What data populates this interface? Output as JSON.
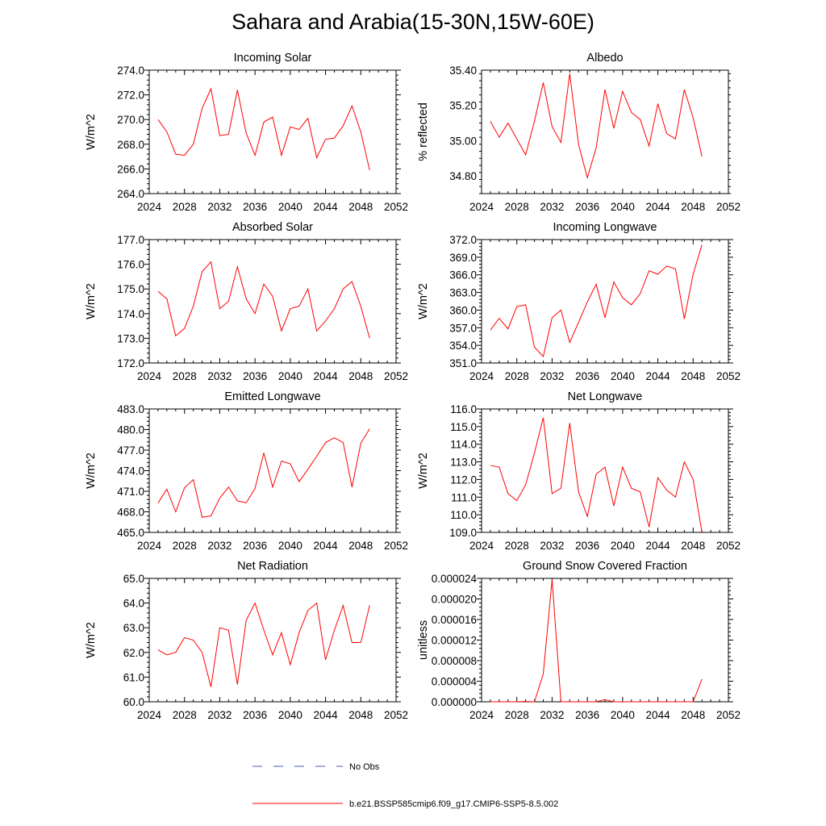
{
  "figure": {
    "title": "Sahara and Arabia(15-30N,15W-60E)",
    "colors": {
      "model": "#ff0000",
      "obs": "#4a5db3",
      "axes": "#000000"
    }
  },
  "legend": {
    "entries": [
      {
        "label": "No Obs",
        "style": "dashed",
        "color": "#4a5db3"
      },
      {
        "label": "b.e21.BSSP585cmip6.f09_g17.CMIP6-SSP5-8.5.002",
        "style": "solid",
        "color": "#ff0000"
      }
    ]
  },
  "chart_data": [
    {
      "type": "line",
      "title": "Incoming Solar",
      "ylabel": "W/m^2",
      "xlabel": "",
      "xlim": [
        2024,
        2052
      ],
      "ylim": [
        264.0,
        274.0
      ],
      "decimals": 1,
      "xticks": [
        2024,
        2028,
        2032,
        2036,
        2040,
        2044,
        2048,
        2052
      ],
      "yticks": [
        264.0,
        266.0,
        268.0,
        270.0,
        272.0,
        274.0
      ],
      "x": [
        2025,
        2026,
        2027,
        2028,
        2029,
        2030,
        2031,
        2032,
        2033,
        2034,
        2035,
        2036,
        2037,
        2038,
        2039,
        2040,
        2041,
        2042,
        2043,
        2044,
        2045,
        2046,
        2047,
        2048,
        2049
      ],
      "series": [
        {
          "values": [
            270.0,
            269.0,
            267.2,
            267.1,
            268.0,
            270.9,
            272.5,
            268.7,
            268.8,
            272.4,
            268.9,
            267.1,
            269.8,
            270.2,
            267.1,
            269.4,
            269.2,
            270.1,
            266.9,
            268.4,
            268.5,
            269.5,
            271.1,
            269.0,
            265.9
          ]
        }
      ],
      "grid": false
    },
    {
      "type": "line",
      "title": "Albedo",
      "ylabel": "% reflected",
      "xlabel": "",
      "xlim": [
        2024,
        2052
      ],
      "ylim": [
        34.7,
        35.4
      ],
      "decimals": 2,
      "xticks": [
        2024,
        2028,
        2032,
        2036,
        2040,
        2044,
        2048,
        2052
      ],
      "yticks": [
        34.8,
        35.0,
        35.2,
        35.4
      ],
      "x": [
        2025,
        2026,
        2027,
        2028,
        2029,
        2030,
        2031,
        2032,
        2033,
        2034,
        2035,
        2036,
        2037,
        2038,
        2039,
        2040,
        2041,
        2042,
        2043,
        2044,
        2045,
        2046,
        2047,
        2048,
        2049
      ],
      "series": [
        {
          "values": [
            35.11,
            35.02,
            35.1,
            35.01,
            34.92,
            35.11,
            35.33,
            35.08,
            34.99,
            35.38,
            34.98,
            34.79,
            34.96,
            35.29,
            35.07,
            35.28,
            35.16,
            35.12,
            34.97,
            35.21,
            35.04,
            35.01,
            35.29,
            35.13,
            34.91
          ]
        }
      ],
      "grid": false
    },
    {
      "type": "line",
      "title": "Absorbed Solar",
      "ylabel": "W/m^2",
      "xlabel": "",
      "xlim": [
        2024,
        2052
      ],
      "ylim": [
        172.0,
        177.0
      ],
      "decimals": 1,
      "xticks": [
        2024,
        2028,
        2032,
        2036,
        2040,
        2044,
        2048,
        2052
      ],
      "yticks": [
        172.0,
        173.0,
        174.0,
        175.0,
        176.0,
        177.0
      ],
      "x": [
        2025,
        2026,
        2027,
        2028,
        2029,
        2030,
        2031,
        2032,
        2033,
        2034,
        2035,
        2036,
        2037,
        2038,
        2039,
        2040,
        2041,
        2042,
        2043,
        2044,
        2045,
        2046,
        2047,
        2048,
        2049
      ],
      "series": [
        {
          "values": [
            174.9,
            174.6,
            173.1,
            173.4,
            174.3,
            175.7,
            176.1,
            174.2,
            174.5,
            175.9,
            174.6,
            174.0,
            175.2,
            174.7,
            173.3,
            174.2,
            174.3,
            175.0,
            173.3,
            173.7,
            174.2,
            175.0,
            175.3,
            174.3,
            173.0
          ]
        }
      ],
      "grid": false
    },
    {
      "type": "line",
      "title": "Incoming Longwave",
      "ylabel": "W/m^2",
      "xlabel": "",
      "xlim": [
        2024,
        2052
      ],
      "ylim": [
        351.0,
        372.0
      ],
      "decimals": 1,
      "xticks": [
        2024,
        2028,
        2032,
        2036,
        2040,
        2044,
        2048,
        2052
      ],
      "yticks": [
        351.0,
        354.0,
        357.0,
        360.0,
        363.0,
        366.0,
        369.0,
        372.0
      ],
      "x": [
        2025,
        2026,
        2027,
        2028,
        2029,
        2030,
        2031,
        2032,
        2033,
        2034,
        2035,
        2036,
        2037,
        2038,
        2039,
        2040,
        2041,
        2042,
        2043,
        2044,
        2045,
        2046,
        2047,
        2048,
        2049
      ],
      "series": [
        {
          "values": [
            356.6,
            358.6,
            356.8,
            360.6,
            360.9,
            353.7,
            352.1,
            358.7,
            360.0,
            354.5,
            357.9,
            361.4,
            364.4,
            358.7,
            364.8,
            362.1,
            360.9,
            362.8,
            366.7,
            366.1,
            367.5,
            367.0,
            358.5,
            366.1,
            371.1
          ]
        }
      ],
      "grid": false
    },
    {
      "type": "line",
      "title": "Emitted Longwave",
      "ylabel": "W/m^2",
      "xlabel": "",
      "xlim": [
        2024,
        2052
      ],
      "ylim": [
        465.0,
        483.0
      ],
      "decimals": 1,
      "xticks": [
        2024,
        2028,
        2032,
        2036,
        2040,
        2044,
        2048,
        2052
      ],
      "yticks": [
        465.0,
        468.0,
        471.0,
        474.0,
        477.0,
        480.0,
        483.0
      ],
      "x": [
        2025,
        2026,
        2027,
        2028,
        2029,
        2030,
        2031,
        2032,
        2033,
        2034,
        2035,
        2036,
        2037,
        2038,
        2039,
        2040,
        2041,
        2042,
        2043,
        2044,
        2045,
        2046,
        2047,
        2048,
        2049
      ],
      "series": [
        {
          "values": [
            469.3,
            471.3,
            468.0,
            471.5,
            472.7,
            467.2,
            467.4,
            470.0,
            471.6,
            469.6,
            469.3,
            471.4,
            476.6,
            471.6,
            475.4,
            475.0,
            472.4,
            474.2,
            476.1,
            478.1,
            478.8,
            478.1,
            471.6,
            478.0,
            480.1
          ]
        }
      ],
      "grid": false
    },
    {
      "type": "line",
      "title": "Net Longwave",
      "ylabel": "W/m^2",
      "xlabel": "",
      "xlim": [
        2024,
        2052
      ],
      "ylim": [
        109.0,
        116.0
      ],
      "decimals": 1,
      "xticks": [
        2024,
        2028,
        2032,
        2036,
        2040,
        2044,
        2048,
        2052
      ],
      "yticks": [
        109.0,
        110.0,
        111.0,
        112.0,
        113.0,
        114.0,
        115.0,
        116.0
      ],
      "x": [
        2025,
        2026,
        2027,
        2028,
        2029,
        2030,
        2031,
        2032,
        2033,
        2034,
        2035,
        2036,
        2037,
        2038,
        2039,
        2040,
        2041,
        2042,
        2043,
        2044,
        2045,
        2046,
        2047,
        2048,
        2049
      ],
      "series": [
        {
          "values": [
            112.8,
            112.7,
            111.2,
            110.8,
            111.7,
            113.5,
            115.5,
            111.2,
            111.5,
            115.2,
            111.3,
            109.9,
            112.3,
            112.7,
            110.5,
            112.7,
            111.5,
            111.3,
            109.3,
            112.1,
            111.4,
            111.0,
            113.0,
            112.0,
            109.0
          ]
        }
      ],
      "grid": false
    },
    {
      "type": "line",
      "title": "Net Radiation",
      "ylabel": "W/m^2",
      "xlabel": "",
      "xlim": [
        2024,
        2052
      ],
      "ylim": [
        60.0,
        65.0
      ],
      "decimals": 1,
      "xticks": [
        2024,
        2028,
        2032,
        2036,
        2040,
        2044,
        2048,
        2052
      ],
      "yticks": [
        60.0,
        61.0,
        62.0,
        63.0,
        64.0,
        65.0
      ],
      "x": [
        2025,
        2026,
        2027,
        2028,
        2029,
        2030,
        2031,
        2032,
        2033,
        2034,
        2035,
        2036,
        2037,
        2038,
        2039,
        2040,
        2041,
        2042,
        2043,
        2044,
        2045,
        2046,
        2047,
        2048,
        2049
      ],
      "series": [
        {
          "values": [
            62.1,
            61.9,
            62.0,
            62.6,
            62.5,
            62.0,
            60.6,
            63.0,
            62.9,
            60.7,
            63.3,
            64.0,
            62.9,
            61.9,
            62.8,
            61.5,
            62.8,
            63.7,
            64.0,
            61.7,
            62.9,
            63.9,
            62.4,
            62.4,
            63.9
          ]
        }
      ],
      "grid": false
    },
    {
      "type": "line",
      "title": "Ground Snow Covered Fraction",
      "ylabel": "unitless",
      "xlabel": "",
      "xlim": [
        2024,
        2052
      ],
      "ylim": [
        0.0,
        2.4e-05
      ],
      "decimals": 6,
      "xticks": [
        2024,
        2028,
        2032,
        2036,
        2040,
        2044,
        2048,
        2052
      ],
      "yticks": [
        0.0,
        4e-06,
        8e-06,
        1.2e-05,
        1.6e-05,
        2e-05,
        2.4e-05
      ],
      "x": [
        2025,
        2026,
        2027,
        2028,
        2029,
        2030,
        2031,
        2032,
        2033,
        2034,
        2035,
        2036,
        2037,
        2038,
        2039,
        2040,
        2041,
        2042,
        2043,
        2044,
        2045,
        2046,
        2047,
        2048,
        2049
      ],
      "series": [
        {
          "values": [
            0.0,
            0.0,
            0.0,
            0.0,
            5e-08,
            0.0,
            5.4e-06,
            2.38e-05,
            0.0,
            0.0,
            0.0,
            0.0,
            0.0,
            4e-07,
            0.0,
            0.0,
            0.0,
            0.0,
            0.0,
            0.0,
            0.0,
            0.0,
            0.0,
            0.0,
            4.4e-06
          ]
        }
      ],
      "grid": false
    }
  ]
}
